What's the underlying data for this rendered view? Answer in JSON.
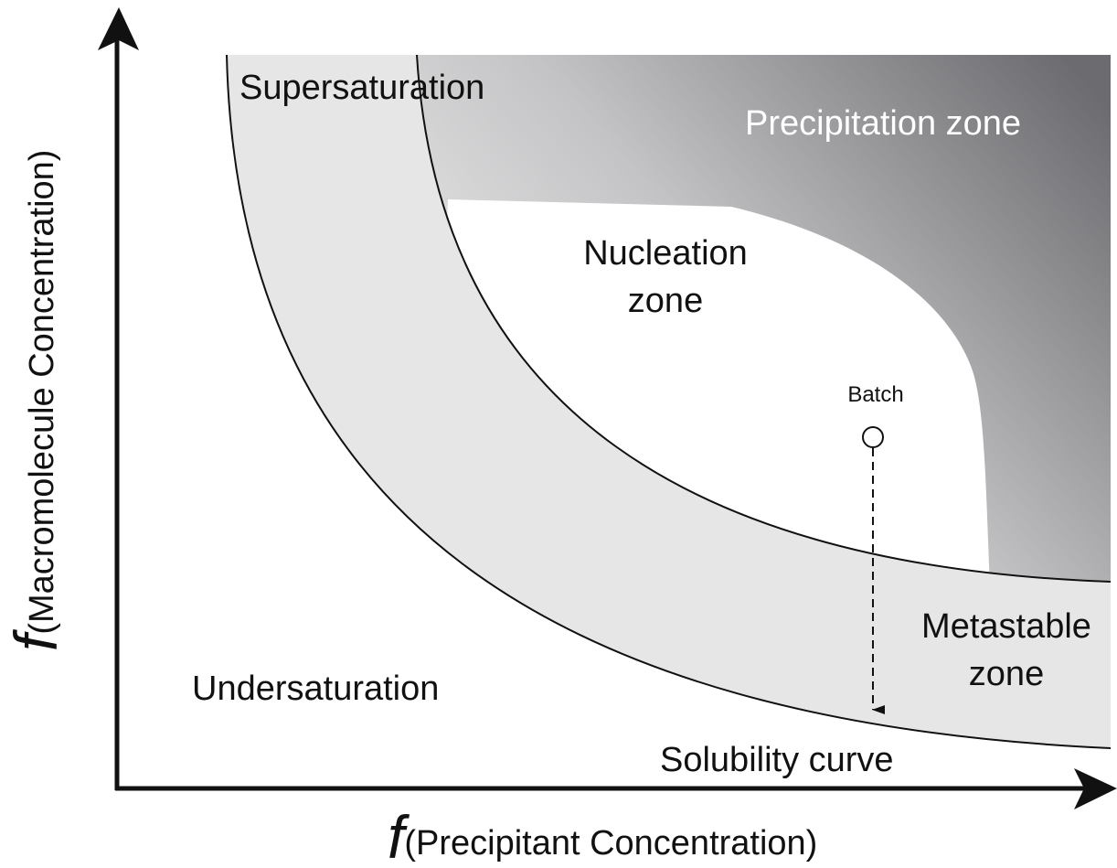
{
  "axes": {
    "x_label": {
      "symbol": "f",
      "text": "(Precipitant Concentration)"
    },
    "y_label": {
      "symbol": "f",
      "text": "(Macromolecule Concentration)"
    }
  },
  "regions": {
    "supersaturation": "Supersaturation",
    "precipitation": "Precipitation zone",
    "nucleation": [
      "Nucleation",
      "zone"
    ],
    "metastable": [
      "Metastable",
      "zone"
    ],
    "undersaturation": "Undersaturation"
  },
  "curve_label": "Solubility curve",
  "point": {
    "label": "Batch"
  }
}
